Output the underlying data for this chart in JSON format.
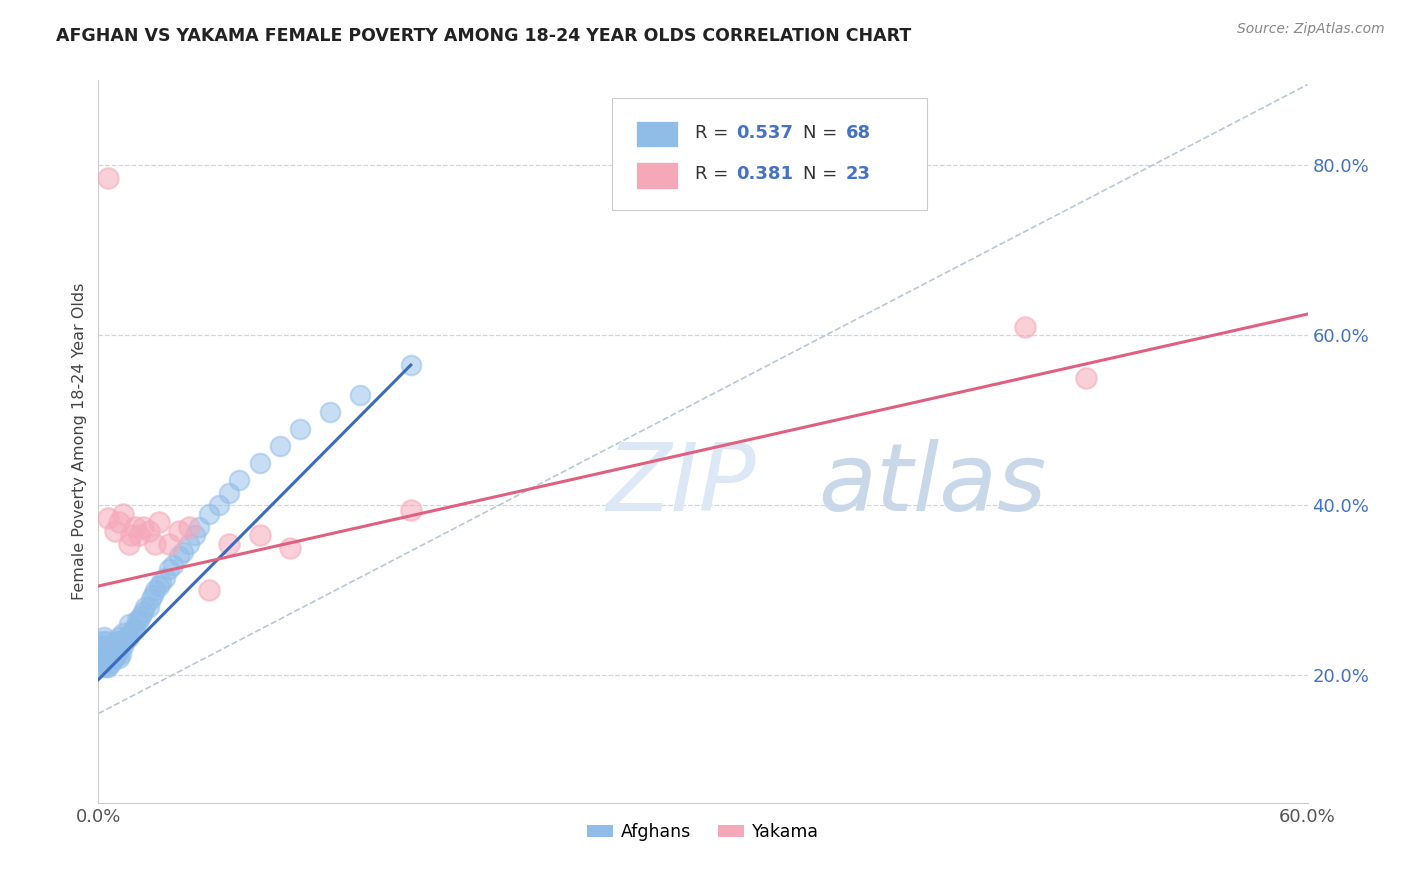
{
  "title": "AFGHAN VS YAKAMA FEMALE POVERTY AMONG 18-24 YEAR OLDS CORRELATION CHART",
  "source": "Source: ZipAtlas.com",
  "ylabel": "Female Poverty Among 18-24 Year Olds",
  "xlim": [
    0.0,
    0.6
  ],
  "ylim": [
    0.05,
    0.9
  ],
  "xtick_positions": [
    0.0,
    0.1,
    0.2,
    0.3,
    0.4,
    0.5,
    0.6
  ],
  "xtick_labels": [
    "0.0%",
    "",
    "",
    "",
    "",
    "",
    "60.0%"
  ],
  "ytick_right_vals": [
    0.2,
    0.4,
    0.6,
    0.8
  ],
  "ytick_right_labels": [
    "20.0%",
    "40.0%",
    "60.0%",
    "80.0%"
  ],
  "afghan_R": 0.537,
  "afghan_N": 68,
  "yakama_R": 0.381,
  "yakama_N": 23,
  "afghan_color": "#90bce8",
  "yakama_color": "#f5a8b8",
  "afghan_line_color": "#3a6bbf",
  "yakama_line_color": "#e06080",
  "diagonal_color": "#b8c8d8",
  "background_color": "#ffffff",
  "grid_color": "#c8d8e8",
  "watermark_color": "#dce8f5",
  "legend_color": "#4472c4",
  "afghan_line_x": [
    0.0,
    0.155
  ],
  "afghan_line_y": [
    0.195,
    0.565
  ],
  "yakama_line_x": [
    0.0,
    0.6
  ],
  "yakama_line_y": [
    0.305,
    0.625
  ],
  "diag_line_x": [
    0.0,
    0.6
  ],
  "diag_line_y": [
    0.155,
    0.895
  ],
  "afghan_x": [
    0.001,
    0.001,
    0.001,
    0.002,
    0.002,
    0.002,
    0.002,
    0.003,
    0.003,
    0.003,
    0.003,
    0.004,
    0.004,
    0.004,
    0.005,
    0.005,
    0.005,
    0.006,
    0.006,
    0.007,
    0.007,
    0.008,
    0.008,
    0.009,
    0.009,
    0.01,
    0.01,
    0.01,
    0.011,
    0.011,
    0.012,
    0.012,
    0.013,
    0.014,
    0.015,
    0.015,
    0.016,
    0.017,
    0.018,
    0.019,
    0.02,
    0.021,
    0.022,
    0.023,
    0.025,
    0.026,
    0.027,
    0.028,
    0.03,
    0.031,
    0.033,
    0.035,
    0.037,
    0.04,
    0.042,
    0.045,
    0.048,
    0.05,
    0.055,
    0.06,
    0.065,
    0.07,
    0.08,
    0.09,
    0.1,
    0.115,
    0.13,
    0.155
  ],
  "afghan_y": [
    0.215,
    0.22,
    0.23,
    0.21,
    0.225,
    0.235,
    0.24,
    0.215,
    0.225,
    0.235,
    0.245,
    0.21,
    0.225,
    0.24,
    0.21,
    0.22,
    0.235,
    0.215,
    0.23,
    0.22,
    0.235,
    0.22,
    0.235,
    0.225,
    0.24,
    0.22,
    0.23,
    0.245,
    0.225,
    0.24,
    0.235,
    0.25,
    0.24,
    0.245,
    0.245,
    0.26,
    0.25,
    0.255,
    0.255,
    0.265,
    0.265,
    0.27,
    0.275,
    0.28,
    0.28,
    0.29,
    0.295,
    0.3,
    0.305,
    0.31,
    0.315,
    0.325,
    0.33,
    0.34,
    0.345,
    0.355,
    0.365,
    0.375,
    0.39,
    0.4,
    0.415,
    0.43,
    0.45,
    0.47,
    0.49,
    0.51,
    0.53,
    0.565
  ],
  "yakama_x": [
    0.005,
    0.005,
    0.008,
    0.01,
    0.012,
    0.015,
    0.016,
    0.018,
    0.02,
    0.022,
    0.025,
    0.028,
    0.03,
    0.035,
    0.04,
    0.045,
    0.055,
    0.065,
    0.08,
    0.095,
    0.155,
    0.46,
    0.49
  ],
  "yakama_y": [
    0.785,
    0.385,
    0.37,
    0.38,
    0.39,
    0.355,
    0.365,
    0.375,
    0.365,
    0.375,
    0.37,
    0.355,
    0.38,
    0.355,
    0.37,
    0.375,
    0.3,
    0.355,
    0.365,
    0.35,
    0.395,
    0.61,
    0.55
  ]
}
